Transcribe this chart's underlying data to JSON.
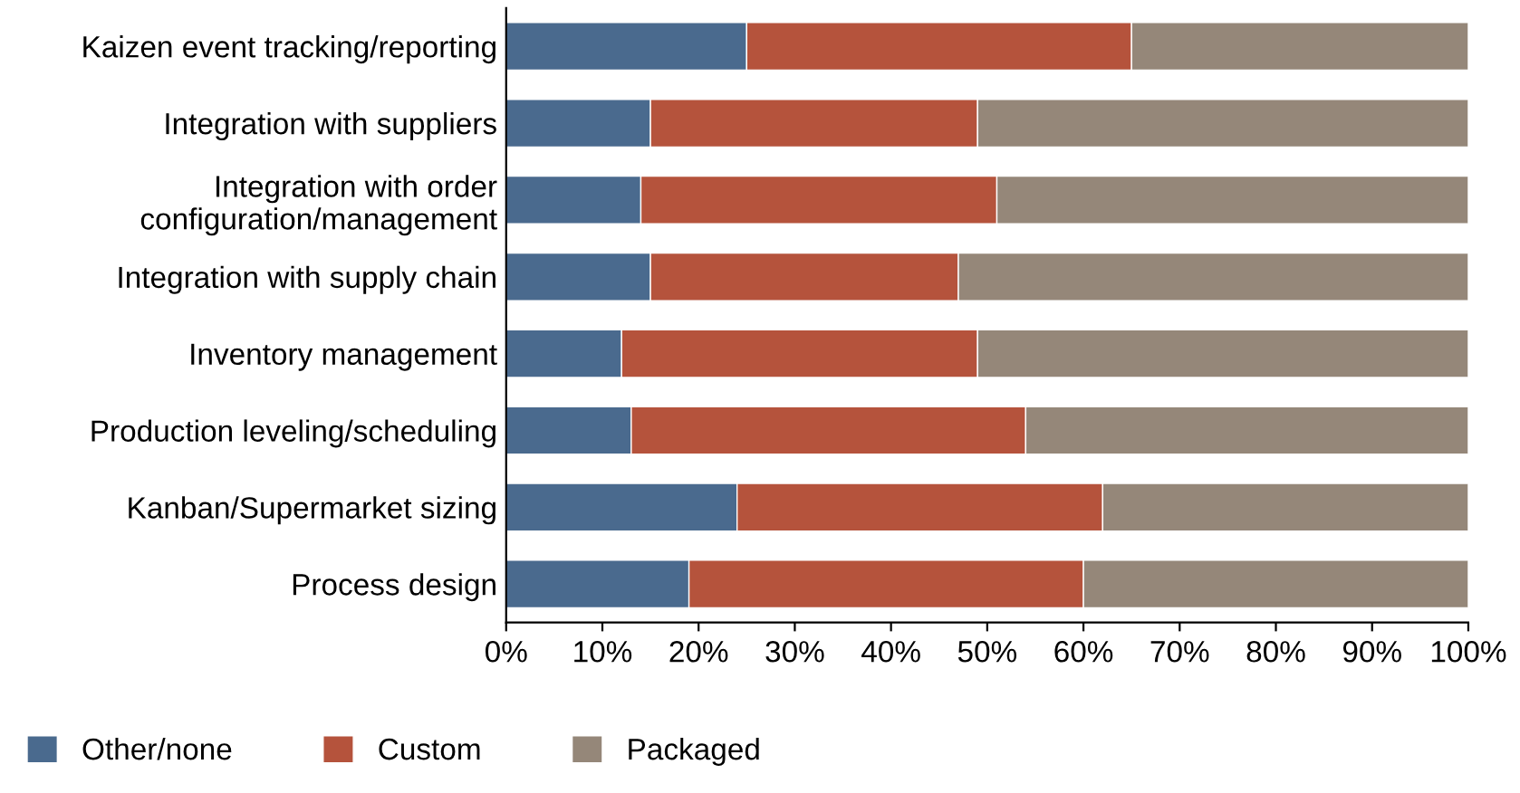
{
  "chart_data": {
    "type": "bar",
    "orientation": "horizontal",
    "stacked": true,
    "categories": [
      "Kaizen event tracking/reporting",
      "Integration with suppliers",
      "Integration with order\nconfiguration/management",
      "Integration with supply chain",
      "Inventory management",
      "Production leveling/scheduling",
      "Kanban/Supermarket sizing",
      "Process design"
    ],
    "series": [
      {
        "name": "Other/none",
        "color": "#4a6a8e",
        "values": [
          25,
          15,
          14,
          15,
          12,
          13,
          24,
          19
        ]
      },
      {
        "name": "Custom",
        "color": "#b5533c",
        "values": [
          40,
          34,
          37,
          32,
          37,
          41,
          38,
          41
        ]
      },
      {
        "name": "Packaged",
        "color": "#958779",
        "values": [
          35,
          51,
          49,
          53,
          51,
          46,
          38,
          40
        ]
      }
    ],
    "xlim": [
      0,
      100
    ],
    "xticks": [
      {
        "value": 0,
        "label": "0%"
      },
      {
        "value": 10,
        "label": "10%"
      },
      {
        "value": 20,
        "label": "20%"
      },
      {
        "value": 30,
        "label": "30%"
      },
      {
        "value": 40,
        "label": "40%"
      },
      {
        "value": 50,
        "label": "50%"
      },
      {
        "value": 60,
        "label": "60%"
      },
      {
        "value": 70,
        "label": "70%"
      },
      {
        "value": 80,
        "label": "80%"
      },
      {
        "value": 90,
        "label": "90%"
      },
      {
        "value": 100,
        "label": "100%"
      }
    ],
    "legend": "bottom left",
    "grid": false
  }
}
